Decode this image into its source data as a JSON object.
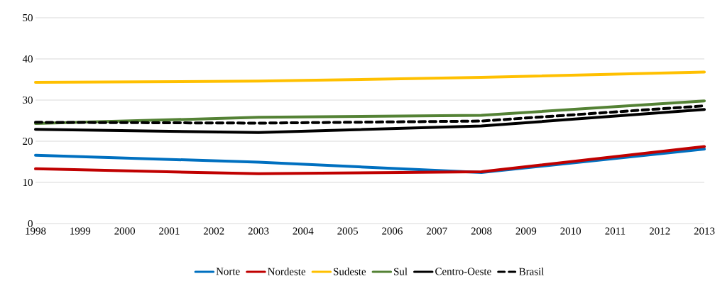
{
  "chart_data": {
    "type": "line",
    "x": [
      1998,
      2003,
      2008,
      2013
    ],
    "xlim": [
      1998,
      2013
    ],
    "xticks": [
      1998,
      1999,
      2000,
      2001,
      2002,
      2003,
      2004,
      2005,
      2006,
      2007,
      2008,
      2009,
      2010,
      2011,
      2012,
      2013
    ],
    "ylim": [
      0,
      50
    ],
    "yticks": [
      0,
      10,
      20,
      30,
      40,
      50
    ],
    "grid": "y",
    "legend": "bottom",
    "marker": "none",
    "series": [
      {
        "name": "Norte",
        "color": "#0070c0",
        "values": [
          16.6,
          14.9,
          12.4,
          18.1
        ]
      },
      {
        "name": "Nordeste",
        "color": "#c00000",
        "values": [
          13.3,
          12.1,
          12.6,
          18.7
        ]
      },
      {
        "name": "Sudeste",
        "color": "#ffc000",
        "values": [
          34.3,
          34.6,
          35.5,
          36.8
        ]
      },
      {
        "name": "Sul",
        "color": "#548235",
        "values": [
          24.3,
          25.8,
          26.3,
          29.8
        ]
      },
      {
        "name": "Centro-Oeste",
        "color": "#000000",
        "values": [
          22.9,
          22.1,
          23.7,
          27.7
        ]
      },
      {
        "name": "Brasil",
        "color": "#000000",
        "values": [
          24.6,
          24.4,
          24.9,
          28.6
        ],
        "line_style": "dashed"
      }
    ]
  }
}
